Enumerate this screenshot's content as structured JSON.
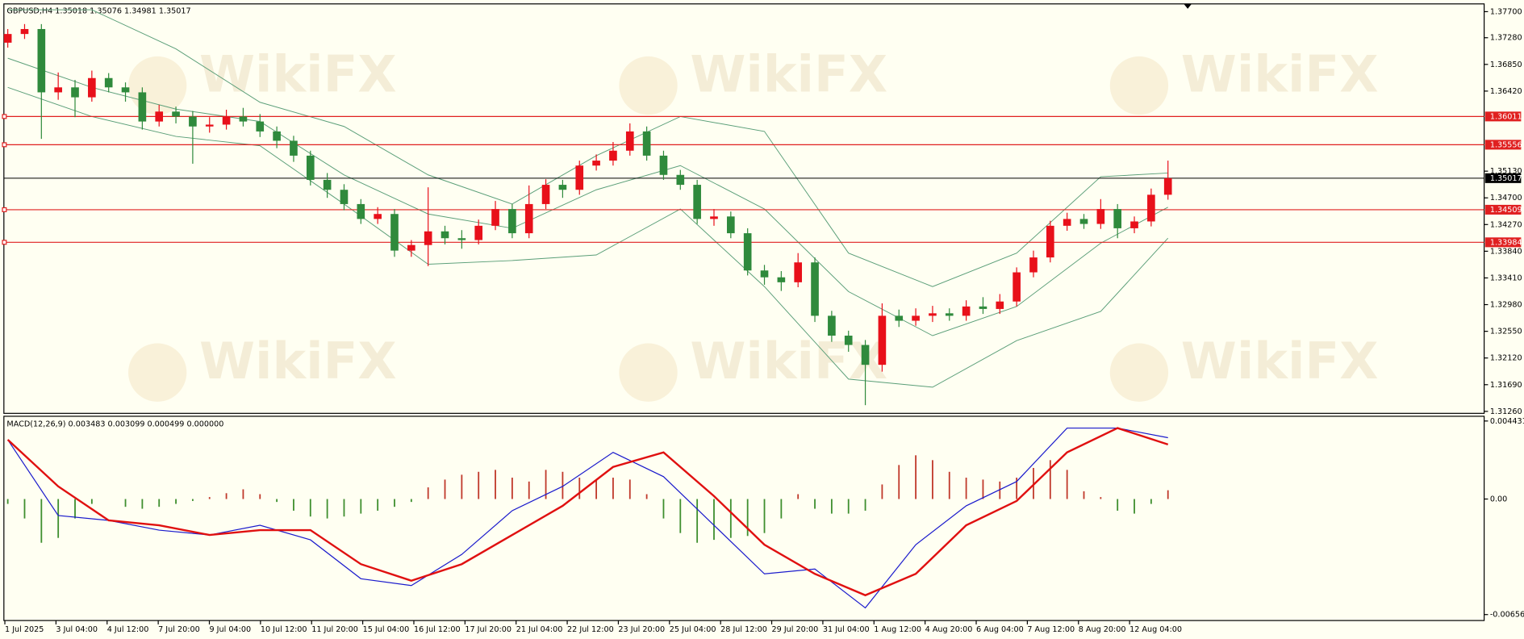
{
  "watermark": "WikiFX",
  "chart_data": [
    {
      "type": "candlestick",
      "title": "GBPUSD,H4  1.35018 1.35076 1.34981 1.35017",
      "x_labels": [
        "1 Jul 2025",
        "3 Jul 04:00",
        "4 Jul 12:00",
        "7 Jul 20:00",
        "9 Jul 04:00",
        "10 Jul 12:00",
        "11 Jul 20:00",
        "15 Jul 04:00",
        "16 Jul 12:00",
        "17 Jul 20:00",
        "21 Jul 04:00",
        "22 Jul 12:00",
        "23 Jul 20:00",
        "25 Jul 04:00",
        "28 Jul 12:00",
        "29 Jul 20:00",
        "31 Jul 04:00",
        "1 Aug 12:00",
        "4 Aug 20:00",
        "6 Aug 04:00",
        "7 Aug 12:00",
        "8 Aug 20:00",
        "12 Aug 04:00"
      ],
      "open": [
        1.372,
        1.3734,
        1.3742,
        1.364,
        1.3648,
        1.3632,
        1.3663,
        1.3648,
        1.364,
        1.3593,
        1.3609,
        1.3601,
        1.3585,
        1.3588,
        1.3601,
        1.3593,
        1.3577,
        1.3562,
        1.3538,
        1.3499,
        1.3483,
        1.346,
        1.3436,
        1.3444,
        1.3385,
        1.3394,
        1.3416,
        1.3405,
        1.3402,
        1.3425,
        1.3452,
        1.3413,
        1.346,
        1.3491,
        1.3483,
        1.3522,
        1.353,
        1.3546,
        1.3577,
        1.3538,
        1.3507,
        1.3491,
        1.3436,
        1.344,
        1.3413,
        1.3353,
        1.3342,
        1.3334,
        1.3366,
        1.328,
        1.3248,
        1.3233,
        1.3201,
        1.328,
        1.3272,
        1.328,
        1.3284,
        1.328,
        1.3295,
        1.3291,
        1.3303,
        1.335,
        1.3374,
        1.3425,
        1.3436,
        1.3428,
        1.3452,
        1.3421,
        1.3432,
        1.3475
      ],
      "high": [
        1.3742,
        1.375,
        1.375,
        1.3672,
        1.366,
        1.3675,
        1.3671,
        1.3656,
        1.3648,
        1.362,
        1.3617,
        1.361,
        1.36,
        1.3612,
        1.3615,
        1.3605,
        1.3585,
        1.357,
        1.3546,
        1.351,
        1.3492,
        1.3468,
        1.3455,
        1.3452,
        1.3402,
        1.3487,
        1.3425,
        1.3418,
        1.3435,
        1.3465,
        1.346,
        1.349,
        1.35,
        1.3499,
        1.353,
        1.354,
        1.356,
        1.359,
        1.3585,
        1.3546,
        1.3515,
        1.3499,
        1.3452,
        1.3448,
        1.3421,
        1.3362,
        1.3352,
        1.3381,
        1.3374,
        1.3288,
        1.3256,
        1.3241,
        1.33,
        1.329,
        1.3292,
        1.3296,
        1.3292,
        1.3305,
        1.331,
        1.3315,
        1.3358,
        1.3385,
        1.3433,
        1.3446,
        1.3444,
        1.3468,
        1.346,
        1.344,
        1.3485,
        1.353
      ],
      "low": [
        1.3712,
        1.3726,
        1.3565,
        1.3628,
        1.36,
        1.3625,
        1.364,
        1.3625,
        1.358,
        1.3585,
        1.359,
        1.3525,
        1.3575,
        1.358,
        1.3585,
        1.3568,
        1.355,
        1.3528,
        1.349,
        1.347,
        1.345,
        1.3428,
        1.3428,
        1.3375,
        1.3375,
        1.336,
        1.3395,
        1.3388,
        1.3395,
        1.3418,
        1.3405,
        1.3405,
        1.3452,
        1.347,
        1.3475,
        1.3514,
        1.3522,
        1.3538,
        1.353,
        1.3499,
        1.3483,
        1.3428,
        1.3425,
        1.3405,
        1.3345,
        1.333,
        1.332,
        1.3326,
        1.327,
        1.3238,
        1.3222,
        1.3136,
        1.319,
        1.3262,
        1.3264,
        1.327,
        1.3272,
        1.3272,
        1.3283,
        1.3283,
        1.3295,
        1.3342,
        1.3366,
        1.3417,
        1.342,
        1.342,
        1.3405,
        1.3413,
        1.3424,
        1.3467
      ],
      "close": [
        1.3734,
        1.3742,
        1.364,
        1.3648,
        1.3632,
        1.3663,
        1.3648,
        1.364,
        1.3593,
        1.3609,
        1.3601,
        1.3585,
        1.3588,
        1.3601,
        1.3593,
        1.3577,
        1.3562,
        1.3538,
        1.3499,
        1.3483,
        1.346,
        1.3436,
        1.3444,
        1.3385,
        1.3394,
        1.3416,
        1.3405,
        1.3402,
        1.3425,
        1.3452,
        1.3413,
        1.346,
        1.3491,
        1.3483,
        1.3522,
        1.353,
        1.3546,
        1.3577,
        1.3538,
        1.3507,
        1.3491,
        1.3436,
        1.344,
        1.3413,
        1.3353,
        1.3342,
        1.3334,
        1.3366,
        1.328,
        1.3248,
        1.3233,
        1.3201,
        1.328,
        1.3272,
        1.328,
        1.3284,
        1.328,
        1.3295,
        1.3291,
        1.3303,
        1.335,
        1.3374,
        1.3425,
        1.3436,
        1.3428,
        1.3452,
        1.3421,
        1.3432,
        1.3475,
        1.35017
      ],
      "up_color": "#e8101a",
      "down_color": "#2f8a3c",
      "bands": {
        "color": "#5a9e78",
        "x": [
          0,
          5,
          10,
          15,
          20,
          25,
          30,
          35,
          40,
          45,
          50,
          55,
          60,
          65,
          69
        ],
        "upper": [
          1.3773,
          1.3773,
          1.371,
          1.3624,
          1.3585,
          1.3507,
          1.346,
          1.3538,
          1.3601,
          1.3577,
          1.3381,
          1.3327,
          1.3381,
          1.3504,
          1.351
        ],
        "middle": [
          1.3695,
          1.3648,
          1.3613,
          1.3593,
          1.3507,
          1.3444,
          1.3421,
          1.3483,
          1.3522,
          1.3452,
          1.3319,
          1.3248,
          1.3295,
          1.3397,
          1.3455
        ],
        "lower": [
          1.3648,
          1.3601,
          1.3569,
          1.3554,
          1.346,
          1.3363,
          1.3369,
          1.3378,
          1.3452,
          1.3327,
          1.3178,
          1.3165,
          1.324,
          1.3287,
          1.3405
        ]
      },
      "levels": [
        {
          "value": 1.36011,
          "color": "#e02020"
        },
        {
          "value": 1.35556,
          "color": "#e02020"
        },
        {
          "value": 1.34509,
          "color": "#e02020"
        },
        {
          "value": 1.33984,
          "color": "#e02020"
        }
      ],
      "current": {
        "value": 1.35017,
        "color": "#000000"
      },
      "ylim": [
        1.31228,
        1.37825
      ],
      "yticks": [
        {
          "value": 1.377,
          "label": "1.37700"
        },
        {
          "value": 1.3728,
          "label": "1.37280"
        },
        {
          "value": 1.3685,
          "label": "1.36850"
        },
        {
          "value": 1.3642,
          "label": "1.36420"
        },
        {
          "value": 1.3513,
          "label": "1.35130"
        },
        {
          "value": 1.347,
          "label": "1.34700"
        },
        {
          "value": 1.3427,
          "label": "1.34270"
        },
        {
          "value": 1.3384,
          "label": "1.33840"
        },
        {
          "value": 1.3341,
          "label": "1.33410"
        },
        {
          "value": 1.3298,
          "label": "1.32980"
        },
        {
          "value": 1.3255,
          "label": "1.32550"
        },
        {
          "value": 1.3212,
          "label": "1.32120"
        },
        {
          "value": 1.3169,
          "label": "1.31690"
        },
        {
          "value": 1.3126,
          "label": "1.31260"
        }
      ]
    },
    {
      "type": "macd",
      "title": "MACD(12,26,9) 0.003483 0.003099 0.000499 0.000000",
      "histogram": {
        "up_color": "#c0392b",
        "down_color": "#3f8f2f",
        "values": [
          -0.000276,
          -0.001104,
          -0.002484,
          -0.002208,
          -0.001104,
          -0.000276,
          0,
          -0.000442,
          -0.000552,
          -0.000442,
          -0.000276,
          -0.00011,
          0.00011,
          0.000331,
          0.000552,
          0.000276,
          -0.000166,
          -0.000662,
          -0.000994,
          -0.001104,
          -0.000994,
          -0.000828,
          -0.000662,
          -0.000442,
          -0.000166,
          0.000662,
          0.001104,
          0.00138,
          0.001546,
          0.001656,
          0.001214,
          0.000994,
          0.001656,
          0.001546,
          0.001214,
          0.001104,
          0.001214,
          0.001104,
          0.000276,
          -0.001104,
          -0.001932,
          -0.002484,
          -0.002318,
          -0.002208,
          -0.002098,
          -0.001932,
          -0.001104,
          0.000276,
          -0.000552,
          -0.000828,
          -0.000828,
          -0.000662,
          0.000828,
          0.001932,
          0.002484,
          0.002208,
          0.001546,
          0.001214,
          0.001104,
          0.000994,
          0.001214,
          0.001766,
          0.002208,
          0.001656,
          0.000442,
          0.00011,
          -0.000662,
          -0.000828,
          -0.000276,
          0.000499
        ]
      },
      "main": {
        "color": "#1a1acc",
        "x": [
          0,
          3,
          6,
          9,
          12,
          15,
          18,
          21,
          24,
          27,
          30,
          33,
          36,
          39,
          42,
          45,
          48,
          51,
          54,
          57,
          60,
          63,
          66,
          69
        ],
        "values": [
          0.003367,
          -0.000938,
          -0.001214,
          -0.001766,
          -0.002042,
          -0.00149,
          -0.002318,
          -0.004526,
          -0.004913,
          -0.003146,
          -0.000662,
          0.000718,
          0.00265,
          0.00127,
          -0.00149,
          -0.00425,
          -0.003974,
          -0.006182,
          -0.002594,
          -0.000386,
          0.000994,
          0.00403,
          0.00403,
          0.003483
        ]
      },
      "signal": {
        "color": "#e01010",
        "x": [
          0,
          3,
          6,
          9,
          12,
          15,
          18,
          21,
          24,
          27,
          30,
          33,
          36,
          39,
          42,
          45,
          48,
          51,
          54,
          57,
          60,
          63,
          66,
          69
        ],
        "values": [
          0.003367,
          0.000718,
          -0.001214,
          -0.00149,
          -0.002042,
          -0.001766,
          -0.001766,
          -0.003698,
          -0.004637,
          -0.003698,
          -0.002042,
          -0.000386,
          0.001822,
          0.00265,
          0.000166,
          -0.002594,
          -0.00425,
          -0.005465,
          -0.00425,
          -0.00149,
          -0.00011,
          0.00265,
          0.00403,
          0.003099
        ]
      },
      "ylim": [
        -0.0069,
        0.0047
      ],
      "yticks": [
        0.004431,
        {
          "value": 0,
          "label": "0.00"
        },
        -0.006562
      ]
    }
  ]
}
